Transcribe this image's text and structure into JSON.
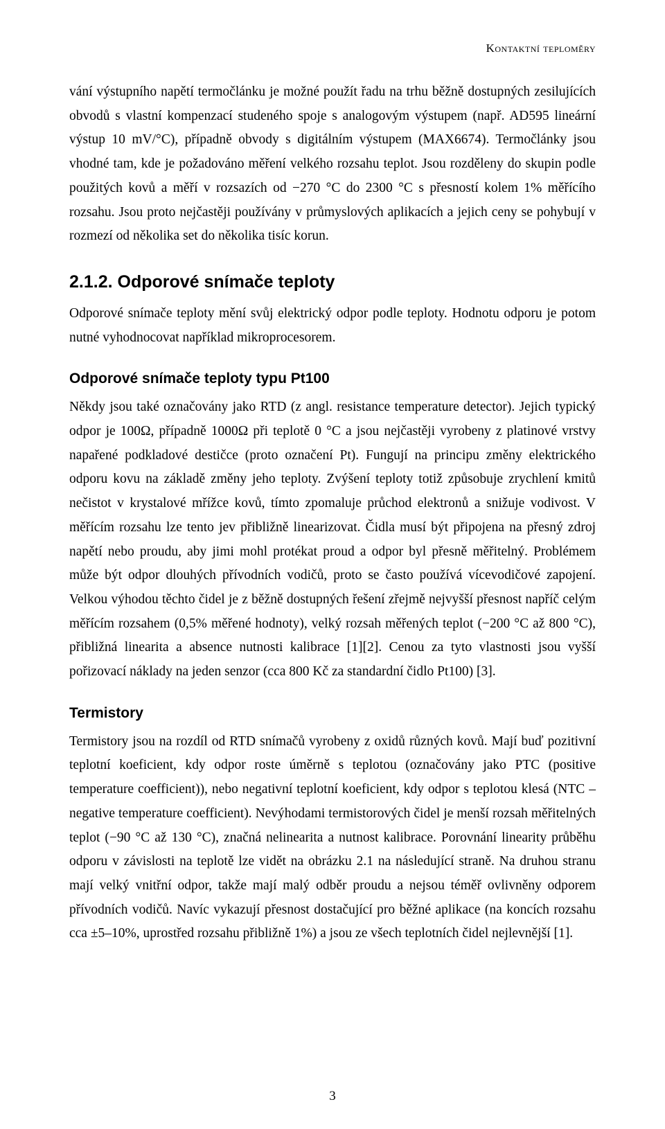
{
  "running_head": "Kontaktní teploměry",
  "para1": "vání výstupního napětí termočlánku je možné použít řadu na trhu běžně dostupných zesilujících obvodů s vlastní kompenzací studeného spoje s analogovým výstupem (např. AD595 lineární výstup 10 mV/°C), případně obvody s digitálním výstupem (MAX6674). Termočlánky jsou vhodné tam, kde je požadováno měření velkého rozsahu teplot. Jsou rozděleny do skupin podle použitých kovů a měří v rozsazích od −270 °C do 2300 °C s přesností kolem 1% měřícího rozsahu. Jsou proto nejčastěji používány v průmyslových aplikacích a jejich ceny se pohybují v rozmezí od několika set do několika tisíc korun.",
  "section_212_title": "2.1.2. Odporové snímače teploty",
  "para2": "Odporové snímače teploty mění svůj elektrický odpor podle teploty. Hodnotu odporu je potom nutné vyhodnocovat například mikroprocesorem.",
  "subsection_pt100_title": "Odporové snímače teploty typu Pt100",
  "para3": "Někdy jsou také označovány jako RTD (z angl. resistance temperature detector). Jejich typický odpor je 100Ω, případně 1000Ω při teplotě 0 °C a jsou nejčastěji vyrobeny z platinové vrstvy napařené podkladové destičce (proto označení Pt). Fungují na principu změny elektrického odporu kovu na základě změny jeho teploty. Zvýšení teploty totiž způsobuje zrychlení kmitů nečistot v krystalové mřížce kovů, tímto zpomaluje průchod elektronů a snižuje vodivost. V měřícím rozsahu lze tento jev přibližně linearizovat. Čidla musí být připojena na přesný zdroj napětí nebo proudu, aby jimi mohl protékat proud a odpor byl přesně měřitelný. Problémem může být odpor dlouhých přívodních vodičů, proto se často používá vícevodičové zapojení. Velkou výhodou těchto čidel je z běžně dostupných řešení zřejmě nejvyšší přesnost napříč celým měřícím rozsahem (0,5% měřené hodnoty), velký rozsah měřených teplot (−200 °C až 800 °C), přibližná linearita a absence nutnosti kalibrace [1][2]. Cenou za tyto vlastnosti jsou vyšší pořizovací náklady na jeden senzor (cca 800 Kč za standardní čidlo Pt100) [3].",
  "subsection_termistory_title": "Termistory",
  "para4": "Termistory jsou na rozdíl od RTD snímačů vyrobeny z oxidů různých kovů. Mají buď pozitivní teplotní koeficient, kdy odpor roste úměrně s teplotou (označovány jako PTC (positive temperature coefficient)), nebo negativní teplotní koeficient, kdy odpor s teplotou klesá (NTC – negative temperature coefficient). Nevýhodami termistorových čidel je menší rozsah měřitelných teplot (−90 °C až 130 °C), značná nelinearita a nutnost kalibrace. Porovnání linearity průběhu odporu v závislosti na teplotě lze vidět na obrázku 2.1 na následující straně. Na druhou stranu mají velký vnitřní odpor, takže mají malý odběr proudu a nejsou téměř ovlivněny odporem přívodních vodičů. Navíc vykazují přesnost dostačující pro běžné aplikace (na koncích rozsahu cca ±5–10%, uprostřed rozsahu přibližně 1%) a jsou ze všech teplotních čidel nejlevnější [1].",
  "page_number": "3"
}
